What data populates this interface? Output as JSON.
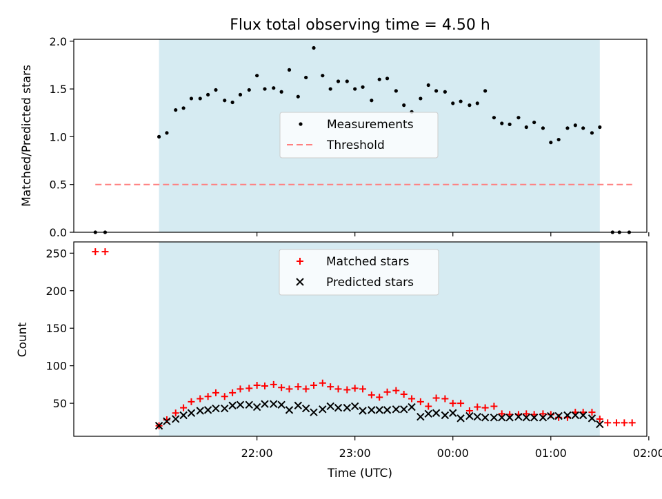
{
  "figure": {
    "title": "Flux total observing time = 4.50 h"
  },
  "chart_data": [
    {
      "type": "scatter",
      "panel": "top",
      "xlabel": "",
      "ylabel": "Matched/Predicted stars",
      "ylim": [
        0,
        2.02
      ],
      "yticks": [
        0,
        0.5,
        1.0,
        1.5,
        2.0
      ],
      "ytick_labels": [
        "0.0",
        "0.5",
        "1.0",
        "1.5",
        "2.0"
      ],
      "x_unit": "hours since 21:00 UTC",
      "xlim": [
        -0.87,
        4.98
      ],
      "xticks": [
        1,
        2,
        3,
        4,
        5
      ],
      "shaded_region": {
        "x": [
          0.2,
          4.7
        ],
        "color": "#add8e6"
      },
      "legend": {
        "position": "center",
        "entries": [
          "Measurements",
          "Threshold"
        ]
      },
      "series": [
        {
          "name": "Measurements",
          "color": "#000000",
          "marker": "dot",
          "points": [
            [
              -0.65,
              0.0
            ],
            [
              -0.55,
              0.0
            ],
            [
              0.0,
              1.0
            ],
            [
              0.08,
              1.04
            ],
            [
              0.17,
              1.28
            ],
            [
              0.25,
              1.3
            ],
            [
              0.33,
              1.4
            ],
            [
              0.42,
              1.4
            ],
            [
              0.5,
              1.44
            ],
            [
              0.58,
              1.49
            ],
            [
              0.67,
              1.38
            ],
            [
              0.75,
              1.36
            ],
            [
              0.83,
              1.44
            ],
            [
              0.92,
              1.49
            ],
            [
              1.0,
              1.64
            ],
            [
              1.08,
              1.5
            ],
            [
              1.17,
              1.51
            ],
            [
              1.25,
              1.47
            ],
            [
              1.33,
              1.7
            ],
            [
              1.42,
              1.42
            ],
            [
              1.5,
              1.62
            ],
            [
              1.58,
              1.93
            ],
            [
              1.67,
              1.64
            ],
            [
              1.75,
              1.5
            ],
            [
              1.83,
              1.58
            ],
            [
              1.92,
              1.58
            ],
            [
              2.0,
              1.5
            ],
            [
              2.08,
              1.52
            ],
            [
              2.17,
              1.38
            ],
            [
              2.25,
              1.6
            ],
            [
              2.33,
              1.61
            ],
            [
              2.42,
              1.48
            ],
            [
              2.5,
              1.33
            ],
            [
              2.58,
              1.26
            ],
            [
              2.67,
              1.4
            ],
            [
              2.75,
              1.54
            ],
            [
              2.83,
              1.48
            ],
            [
              2.92,
              1.47
            ],
            [
              3.0,
              1.35
            ],
            [
              3.08,
              1.37
            ],
            [
              3.17,
              1.33
            ],
            [
              3.25,
              1.35
            ],
            [
              3.33,
              1.48
            ],
            [
              3.42,
              1.2
            ],
            [
              3.5,
              1.14
            ],
            [
              3.58,
              1.13
            ],
            [
              3.67,
              1.2
            ],
            [
              3.75,
              1.1
            ],
            [
              3.83,
              1.15
            ],
            [
              3.92,
              1.09
            ],
            [
              4.0,
              0.94
            ],
            [
              4.08,
              0.97
            ],
            [
              4.17,
              1.09
            ],
            [
              4.25,
              1.12
            ],
            [
              4.33,
              1.09
            ],
            [
              4.42,
              1.04
            ],
            [
              4.5,
              1.1
            ],
            [
              4.63,
              0.0
            ],
            [
              4.7,
              0.0
            ],
            [
              4.8,
              0.0
            ]
          ]
        },
        {
          "name": "Threshold",
          "color": "#ff7f7f",
          "style": "dashed",
          "x": [
            -0.65,
            4.83
          ],
          "y": [
            0.5,
            0.5
          ]
        }
      ]
    },
    {
      "type": "scatter",
      "panel": "bottom",
      "xlabel": "Time (UTC)",
      "ylabel": "Count",
      "ylim": [
        6,
        265
      ],
      "yticks": [
        50,
        100,
        150,
        200,
        250
      ],
      "ytick_labels": [
        "50",
        "100",
        "150",
        "200",
        "250"
      ],
      "x_unit": "hours since 21:00 UTC",
      "xlim": [
        -0.87,
        4.98
      ],
      "xticks": [
        1,
        2,
        3,
        4,
        5
      ],
      "xtick_labels": [
        "22:00",
        "23:00",
        "00:00",
        "01:00",
        "02:00"
      ],
      "shaded_region": {
        "x": [
          0.2,
          4.7
        ],
        "color": "#add8e6"
      },
      "legend": {
        "position": "top-center",
        "entries": [
          "Matched stars",
          "Predicted stars"
        ]
      },
      "series": [
        {
          "name": "Matched stars",
          "color": "#ff0000",
          "marker": "plus",
          "points": [
            [
              -0.65,
              252
            ],
            [
              -0.55,
              252
            ],
            [
              0.0,
              20
            ],
            [
              0.08,
              28
            ],
            [
              0.17,
              37
            ],
            [
              0.25,
              44
            ],
            [
              0.33,
              52
            ],
            [
              0.42,
              56
            ],
            [
              0.5,
              59
            ],
            [
              0.58,
              64
            ],
            [
              0.67,
              59
            ],
            [
              0.75,
              64
            ],
            [
              0.83,
              69
            ],
            [
              0.92,
              70
            ],
            [
              1.0,
              74
            ],
            [
              1.08,
              73
            ],
            [
              1.17,
              75
            ],
            [
              1.25,
              71
            ],
            [
              1.33,
              69
            ],
            [
              1.42,
              72
            ],
            [
              1.5,
              69
            ],
            [
              1.58,
              74
            ],
            [
              1.67,
              77
            ],
            [
              1.75,
              72
            ],
            [
              1.83,
              69
            ],
            [
              1.92,
              68
            ],
            [
              2.0,
              70
            ],
            [
              2.08,
              69
            ],
            [
              2.17,
              61
            ],
            [
              2.25,
              58
            ],
            [
              2.33,
              65
            ],
            [
              2.42,
              67
            ],
            [
              2.5,
              62
            ],
            [
              2.58,
              56
            ],
            [
              2.67,
              52
            ],
            [
              2.75,
              46
            ],
            [
              2.83,
              57
            ],
            [
              2.92,
              56
            ],
            [
              3.0,
              50
            ],
            [
              3.08,
              50
            ],
            [
              3.17,
              40
            ],
            [
              3.25,
              45
            ],
            [
              3.33,
              44
            ],
            [
              3.42,
              46
            ],
            [
              3.5,
              36
            ],
            [
              3.58,
              35
            ],
            [
              3.67,
              35
            ],
            [
              3.75,
              36
            ],
            [
              3.83,
              35
            ],
            [
              3.92,
              36
            ],
            [
              4.0,
              35
            ],
            [
              4.08,
              31
            ],
            [
              4.17,
              31
            ],
            [
              4.25,
              38
            ],
            [
              4.33,
              38
            ],
            [
              4.42,
              38
            ],
            [
              4.5,
              29
            ],
            [
              4.58,
              24
            ],
            [
              4.67,
              24
            ],
            [
              4.75,
              24
            ],
            [
              4.83,
              24
            ]
          ]
        },
        {
          "name": "Predicted stars",
          "color": "#000000",
          "marker": "x",
          "points": [
            [
              0.0,
              20
            ],
            [
              0.08,
              26
            ],
            [
              0.17,
              29
            ],
            [
              0.25,
              34
            ],
            [
              0.33,
              37
            ],
            [
              0.42,
              40
            ],
            [
              0.5,
              41
            ],
            [
              0.58,
              43
            ],
            [
              0.67,
              43
            ],
            [
              0.75,
              47
            ],
            [
              0.83,
              48
            ],
            [
              0.92,
              48
            ],
            [
              1.0,
              45
            ],
            [
              1.08,
              49
            ],
            [
              1.17,
              49
            ],
            [
              1.25,
              48
            ],
            [
              1.33,
              41
            ],
            [
              1.42,
              47
            ],
            [
              1.5,
              43
            ],
            [
              1.58,
              38
            ],
            [
              1.67,
              42
            ],
            [
              1.75,
              46
            ],
            [
              1.83,
              44
            ],
            [
              1.92,
              44
            ],
            [
              2.0,
              46
            ],
            [
              2.08,
              40
            ],
            [
              2.17,
              41
            ],
            [
              2.25,
              41
            ],
            [
              2.33,
              41
            ],
            [
              2.42,
              42
            ],
            [
              2.5,
              42
            ],
            [
              2.58,
              45
            ],
            [
              2.67,
              32
            ],
            [
              2.75,
              36
            ],
            [
              2.83,
              37
            ],
            [
              2.92,
              34
            ],
            [
              3.0,
              37
            ],
            [
              3.08,
              30
            ],
            [
              3.17,
              33
            ],
            [
              3.25,
              32
            ],
            [
              3.33,
              31
            ],
            [
              3.42,
              31
            ],
            [
              3.5,
              31
            ],
            [
              3.58,
              31
            ],
            [
              3.67,
              32
            ],
            [
              3.75,
              31
            ],
            [
              3.83,
              31
            ],
            [
              3.92,
              31
            ],
            [
              4.0,
              33
            ],
            [
              4.08,
              33
            ],
            [
              4.17,
              34
            ],
            [
              4.25,
              34
            ],
            [
              4.33,
              34
            ],
            [
              4.42,
              30
            ],
            [
              4.5,
              22
            ]
          ]
        }
      ]
    }
  ]
}
